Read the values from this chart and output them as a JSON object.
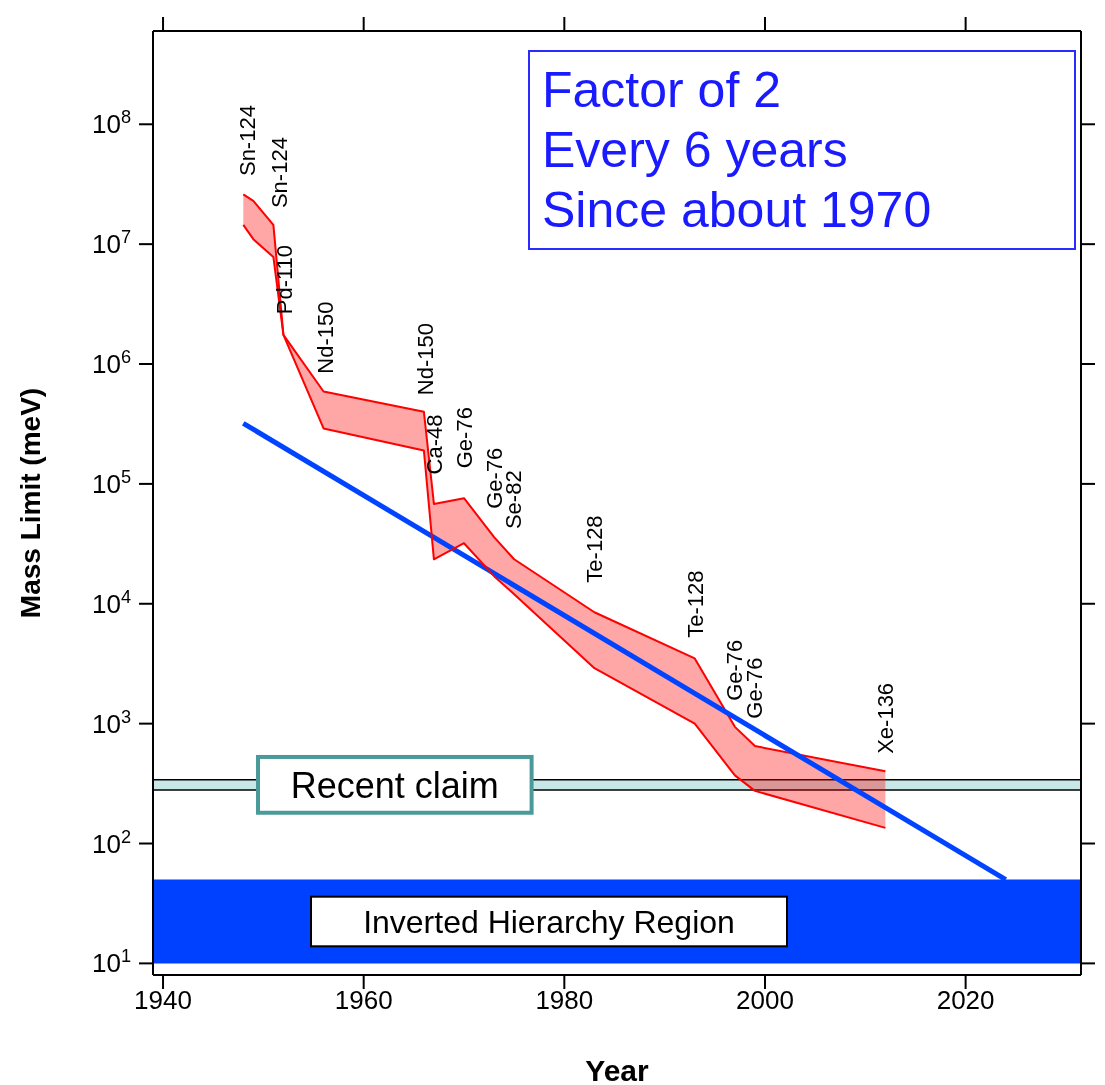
{
  "chart_data": {
    "type": "line",
    "xlabel": "Year",
    "ylabel": "Mass Limit (meV)",
    "log": "y",
    "marker": "none",
    "xlim": [
      1939,
      2031.5
    ],
    "xticks": [
      1940,
      1960,
      1980,
      2000,
      2020
    ],
    "ylim": [
      8,
      600000000
    ],
    "yticks": [
      {
        "value": 10,
        "label": "10$^{1}$"
      },
      {
        "value": 100,
        "label": "10$^{2}$"
      },
      {
        "value": 1000,
        "label": "10$^{3}$"
      },
      {
        "value": 10000,
        "label": "10$^{4}$"
      },
      {
        "value": 100000,
        "label": "10$^{5}$"
      },
      {
        "value": 1000000,
        "label": "10$^{6}$"
      },
      {
        "value": 10000000,
        "label": "10$^{7}$"
      },
      {
        "value": 100000000,
        "label": "10$^{8}$"
      }
    ],
    "series": [
      {
        "color": "#ff0000",
        "x": [
          1948,
          1949,
          1951,
          1952,
          1956,
          1966,
          1967,
          1970,
          1973,
          1975,
          1983,
          1993,
          1997,
          1999,
          2012
        ],
        "values": [
          26000000,
          23000000,
          14500000,
          1750000,
          590000,
          400000,
          68000,
          76000,
          36000,
          23500,
          8500,
          3500,
          940,
          650,
          400
        ],
        "upper": [
          26000000,
          23000000,
          14500000,
          1750000,
          590000,
          400000,
          68000,
          76000,
          36000,
          23500,
          8500,
          3500,
          940,
          650,
          400
        ],
        "lower": [
          14500000,
          11000000,
          7800000,
          1750000,
          290000,
          190000,
          23500,
          32000,
          17000,
          12000,
          2900,
          1000,
          370,
          275,
          135
        ]
      },
      {
        "color": "#0044ff",
        "x": [
          1948,
          2024
        ],
        "values": [
          320000,
          50
        ],
        "line_style": "solid"
      },
      {
        "color": "#ff0000",
        "x": [
          1948,
          1949,
          1951,
          1952,
          1956,
          1966,
          1967,
          1970,
          1973,
          1975,
          1983,
          1993,
          1997,
          1999,
          2012
        ],
        "values": [
          14500000,
          11000000,
          7800000,
          1750000,
          290000,
          190000,
          23500,
          32000,
          17000,
          12000,
          2900,
          1000,
          370,
          275,
          135
        ]
      }
    ],
    "bands": [
      {
        "axis": "y",
        "from": 280,
        "to": 340,
        "label": "Recent claim",
        "color": "#c8e8e8"
      },
      {
        "axis": "y",
        "from": 10,
        "to": 50,
        "label": "Inverted Hierarchy Region",
        "color": "#0040ff"
      }
    ],
    "annotations": [
      "Factor of 2\nEvery 6 years\nSince about 1970",
      "Sn-124",
      "Sn-124",
      "Pd-110",
      "Nd-150",
      "Nd-150",
      "Ca-48",
      "Ge-76",
      "Ge-76",
      "Se-82",
      "Te-128",
      "Te-128",
      "Ge-76",
      "Ge-76",
      "Xe-136"
    ]
  }
}
